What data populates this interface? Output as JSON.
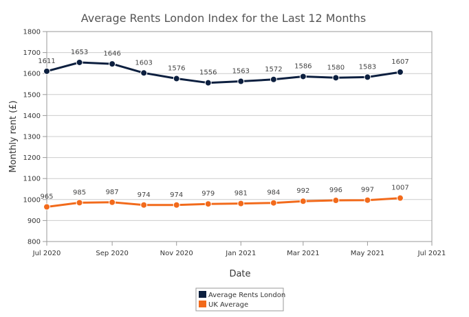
{
  "chart_data": {
    "type": "line",
    "title": "Average Rents London Index for the Last 12 Months",
    "xlabel": "Date",
    "ylabel": "Monthly rent (£)",
    "ylim": [
      800,
      1800
    ],
    "yticks": [
      "800",
      "900",
      "1000",
      "1100",
      "1200",
      "1300",
      "1400",
      "1500",
      "1600",
      "1700",
      "1800"
    ],
    "xlim": [
      "2020-07-01",
      "2021-07-01"
    ],
    "xticks": [
      {
        "date": "2020-07-01",
        "label": "Jul 2020"
      },
      {
        "date": "2020-09-01",
        "label": "Sep 2020"
      },
      {
        "date": "2020-11-01",
        "label": "Nov 2020"
      },
      {
        "date": "2021-01-01",
        "label": "Jan 2021"
      },
      {
        "date": "2021-03-01",
        "label": "Mar 2021"
      },
      {
        "date": "2021-05-01",
        "label": "May 2021"
      },
      {
        "date": "2021-07-01",
        "label": "Jul 2021"
      }
    ],
    "x": [
      "2020-07-01",
      "2020-08-01",
      "2020-09-01",
      "2020-10-01",
      "2020-11-01",
      "2020-12-01",
      "2021-01-01",
      "2021-02-01",
      "2021-03-01",
      "2021-04-01",
      "2021-05-01",
      "2021-06-01"
    ],
    "grid": true,
    "legend_position": "bottom-center",
    "series": [
      {
        "name": "Average Rents London",
        "color": "#0c1f3f",
        "values": [
          1611,
          1653,
          1646,
          1603,
          1576,
          1556,
          1563,
          1572,
          1586,
          1580,
          1583,
          1607
        ]
      },
      {
        "name": "UK Average",
        "color": "#f26a1b",
        "values": [
          965,
          985,
          987,
          974,
          974,
          979,
          981,
          984,
          992,
          996,
          997,
          1007
        ]
      }
    ]
  }
}
